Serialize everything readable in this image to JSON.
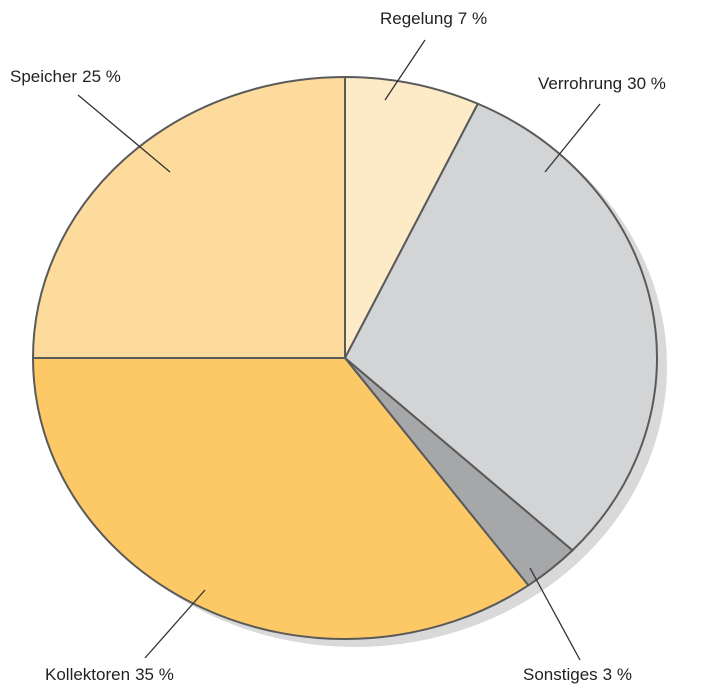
{
  "chart_data": {
    "type": "pie",
    "categories": [
      "Regelung",
      "Verrohrung",
      "Sonstiges",
      "Kollektoren",
      "Speicher"
    ],
    "values": [
      7,
      30,
      3,
      35,
      25
    ],
    "value_labels": [
      "7 %",
      "30 %",
      "3 %",
      "35 %",
      "25 %"
    ],
    "colors": [
      "#fdebc8",
      "#d3d4d6",
      "#a6a7a9",
      "#fdc966",
      "#fddb9c"
    ]
  }
}
